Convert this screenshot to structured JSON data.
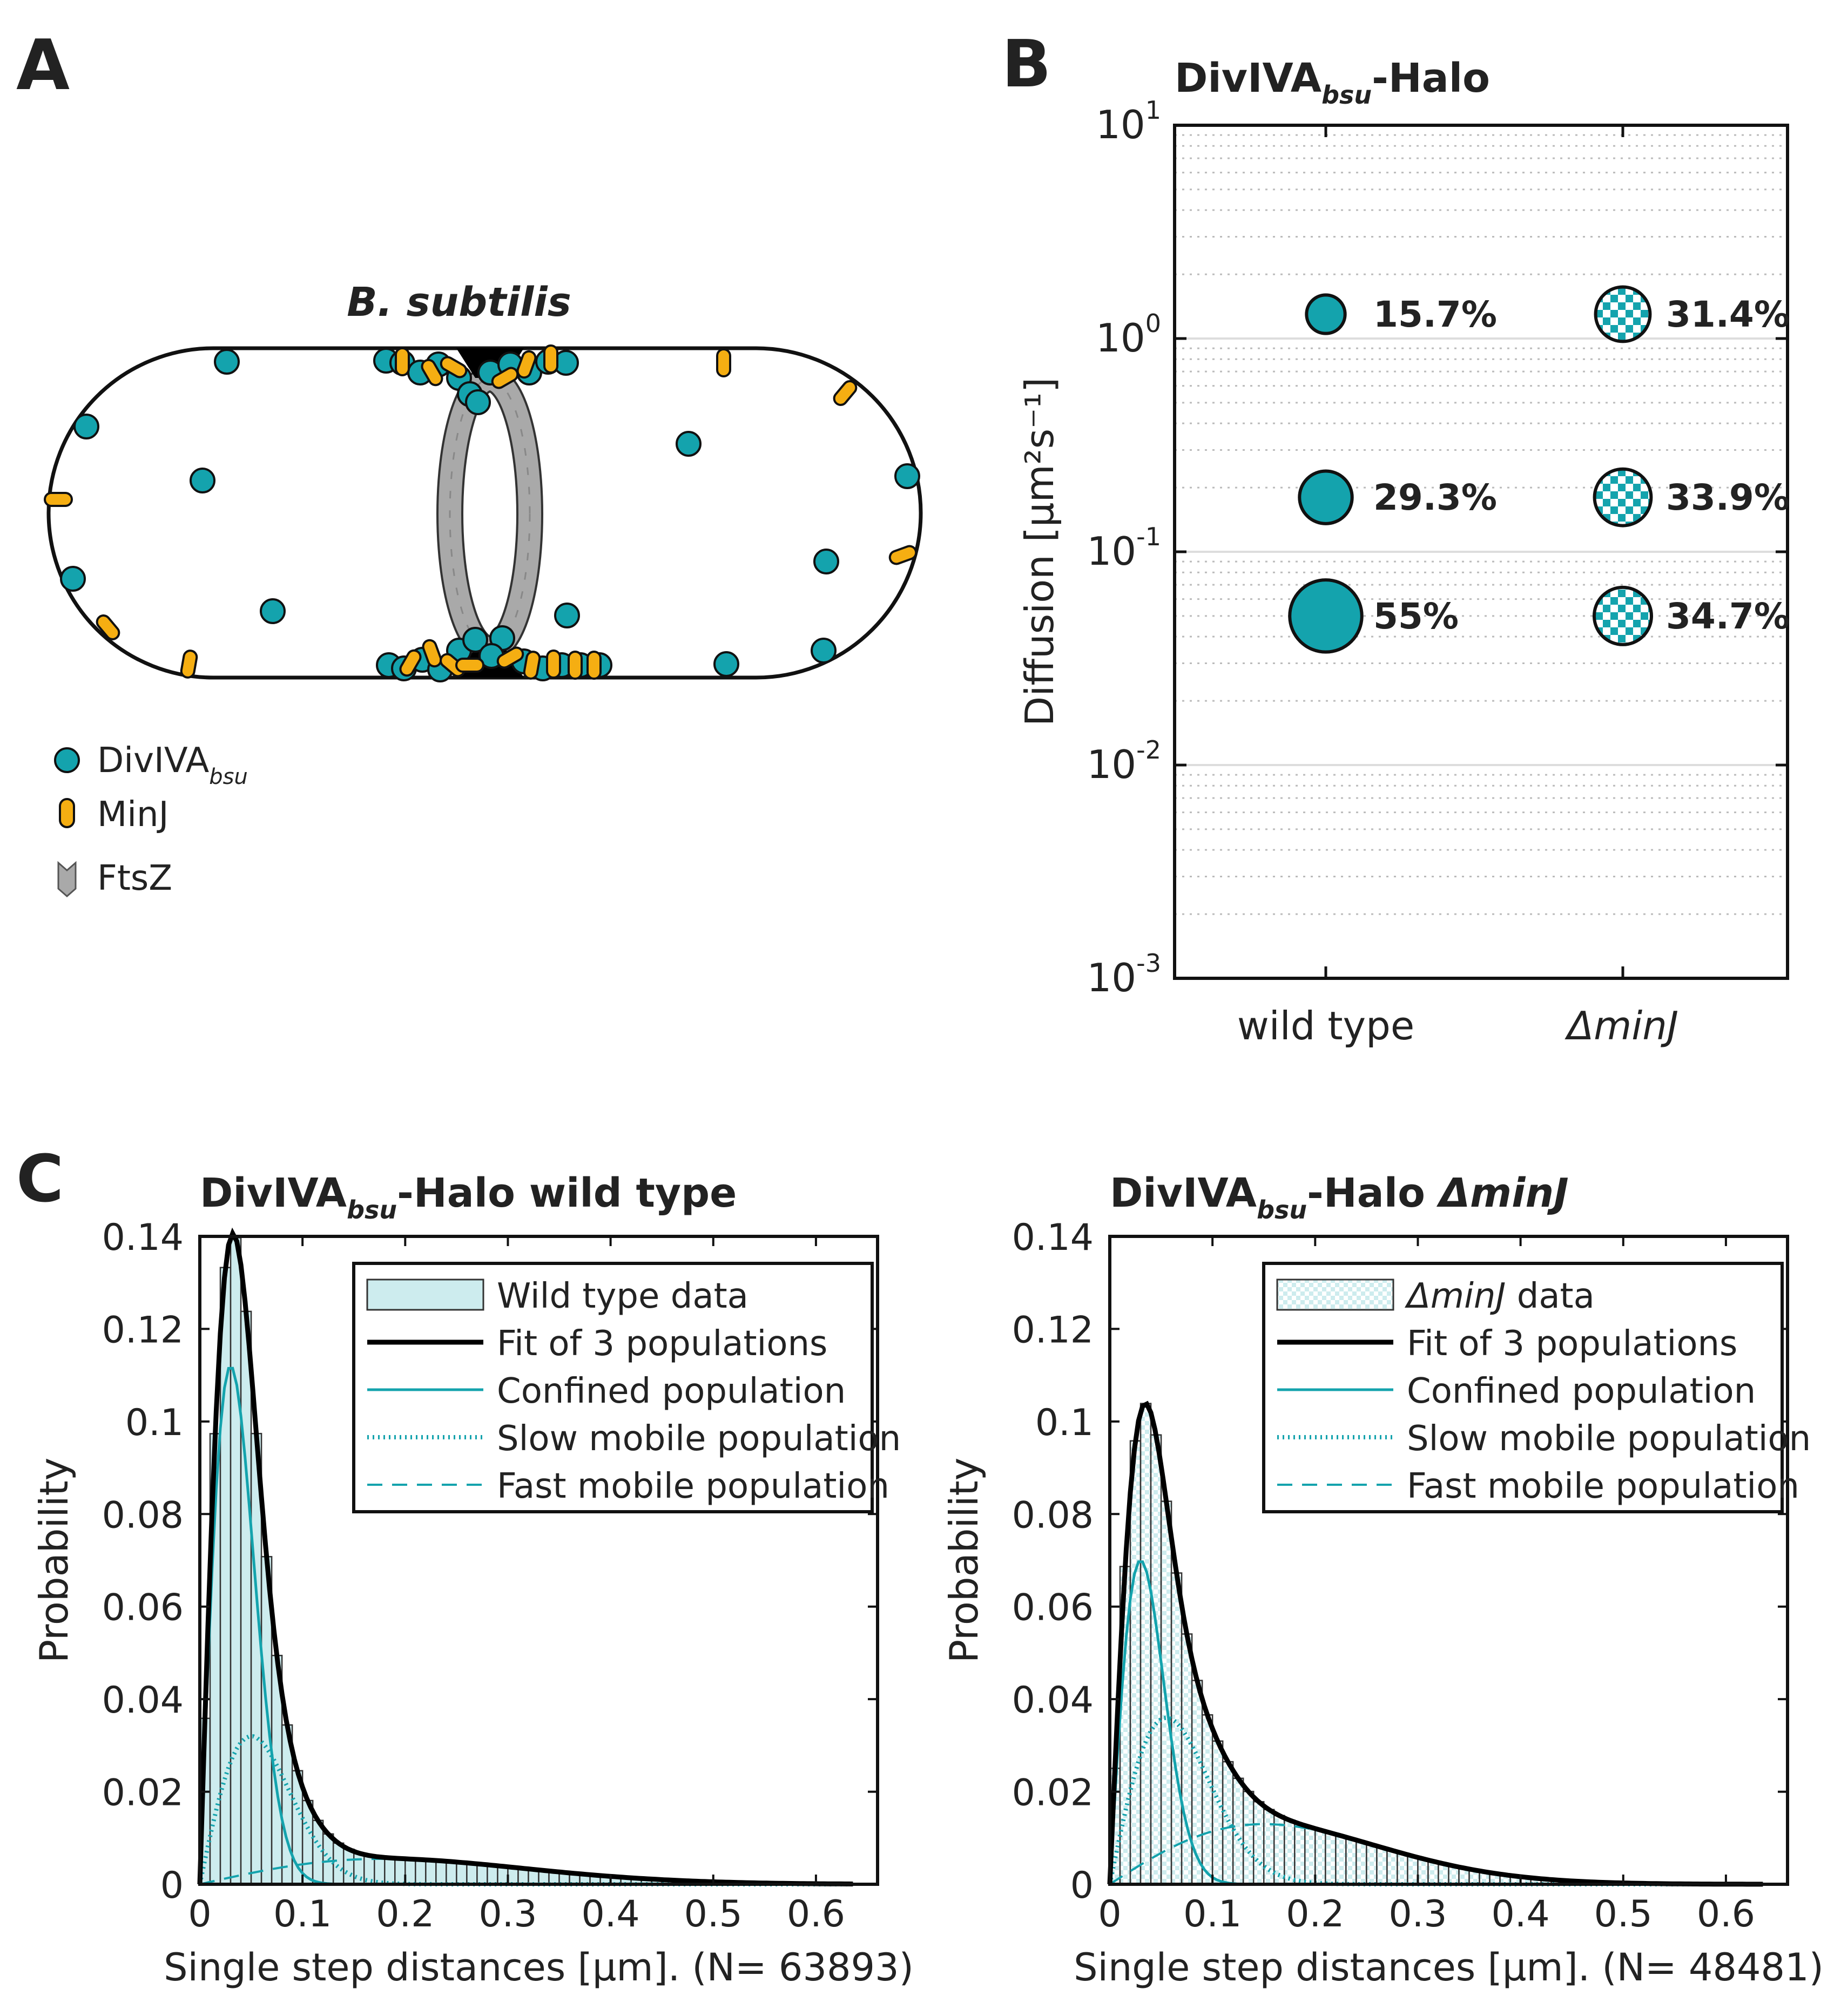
{
  "panel_a": {
    "letter": "A",
    "title": "B. subtilis",
    "legend": [
      {
        "name": "DivIVA",
        "sub": "bsu"
      },
      {
        "name": "MinJ"
      },
      {
        "name": "FtsZ"
      }
    ]
  },
  "colors": {
    "teal": "#14A3AD",
    "teal_light": "#CDECEE",
    "orange": "#F5AE12",
    "grey": "#A9A9A9",
    "black": "#000000"
  },
  "chart_data": [
    {
      "panel": "B",
      "type": "scatter",
      "title_main": "DivIVA",
      "title_sub": "bsu",
      "title_suffix": "-Halo",
      "ylabel": "Diffusion [µm²s⁻¹]",
      "yscale": "log",
      "ylim": [
        0.001,
        10
      ],
      "yticks": [
        {
          "base": "10",
          "exp": "-3"
        },
        {
          "base": "10",
          "exp": "-2"
        },
        {
          "base": "10",
          "exp": "-1"
        },
        {
          "base": "10",
          "exp": "0"
        },
        {
          "base": "10",
          "exp": "1"
        }
      ],
      "categories": [
        "wild type",
        "ΔminJ"
      ],
      "series": [
        {
          "category": "wild type",
          "fill": "solid",
          "points": [
            {
              "D": 1.3,
              "fraction": 15.7,
              "label": "15.7%"
            },
            {
              "D": 0.18,
              "fraction": 29.3,
              "label": "29.3%"
            },
            {
              "D": 0.05,
              "fraction": 55.0,
              "label": "55%"
            }
          ]
        },
        {
          "category": "ΔminJ",
          "fill": "checker",
          "points": [
            {
              "D": 1.3,
              "fraction": 31.4,
              "label": "31.4%"
            },
            {
              "D": 0.18,
              "fraction": 33.9,
              "label": "33.9%"
            },
            {
              "D": 0.05,
              "fraction": 34.7,
              "label": "34.7%"
            }
          ]
        }
      ]
    },
    {
      "panel": "C",
      "type": "bar",
      "title_main": "DivIVA",
      "title_sub": "bsu",
      "title_suffix": "-Halo wild type",
      "xlabel": "Single step distances [µm]. (N= 63893)",
      "ylabel": "Probability",
      "xlim": [
        0,
        0.66
      ],
      "ylim": [
        0,
        0.14
      ],
      "xticks": [
        "0",
        "0.1",
        "0.2",
        "0.3",
        "0.4",
        "0.5",
        "0.6"
      ],
      "yticks": [
        "0",
        "0.02",
        "0.04",
        "0.06",
        "0.08",
        "0.1",
        "0.12",
        "0.14"
      ],
      "bin_width": 0.01,
      "components": [
        {
          "name": "confined",
          "amp": 0.112,
          "mode": 0.03
        },
        {
          "name": "slow",
          "amp": 0.032,
          "mode": 0.05
        },
        {
          "name": "fast",
          "amp": 0.0055,
          "mode": 0.18
        }
      ],
      "legend": [
        {
          "label": "Wild type data",
          "style": "patch"
        },
        {
          "label": "Fit of 3 populations",
          "style": "thick"
        },
        {
          "label": "Confined population",
          "style": "solid"
        },
        {
          "label": "Slow mobile population",
          "style": "dotted"
        },
        {
          "label": "Fast mobile population",
          "style": "dashed"
        }
      ]
    },
    {
      "panel": "C2",
      "type": "bar",
      "title_main": "DivIVA",
      "title_sub": "bsu",
      "title_suffix": "-Halo ",
      "title_italic": "ΔminJ",
      "xlabel": "Single step distances [µm]. (N= 48481)",
      "ylabel": "Probability",
      "xlim": [
        0,
        0.66
      ],
      "ylim": [
        0,
        0.14
      ],
      "xticks": [
        "0",
        "0.1",
        "0.2",
        "0.3",
        "0.4",
        "0.5",
        "0.6"
      ],
      "yticks": [
        "0",
        "0.02",
        "0.04",
        "0.06",
        "0.08",
        "0.1",
        "0.12",
        "0.14"
      ],
      "bin_width": 0.01,
      "components": [
        {
          "name": "confined",
          "amp": 0.07,
          "mode": 0.03
        },
        {
          "name": "slow",
          "amp": 0.036,
          "mode": 0.055
        },
        {
          "name": "fast",
          "amp": 0.013,
          "mode": 0.15
        }
      ],
      "legend": [
        {
          "label": "data",
          "italic_prefix": "ΔminJ",
          "style": "patch-checker"
        },
        {
          "label": "Fit of 3 populations",
          "style": "thick"
        },
        {
          "label": "Confined population",
          "style": "solid"
        },
        {
          "label": "Slow mobile population",
          "style": "dotted"
        },
        {
          "label": "Fast mobile population",
          "style": "dashed"
        }
      ]
    }
  ]
}
